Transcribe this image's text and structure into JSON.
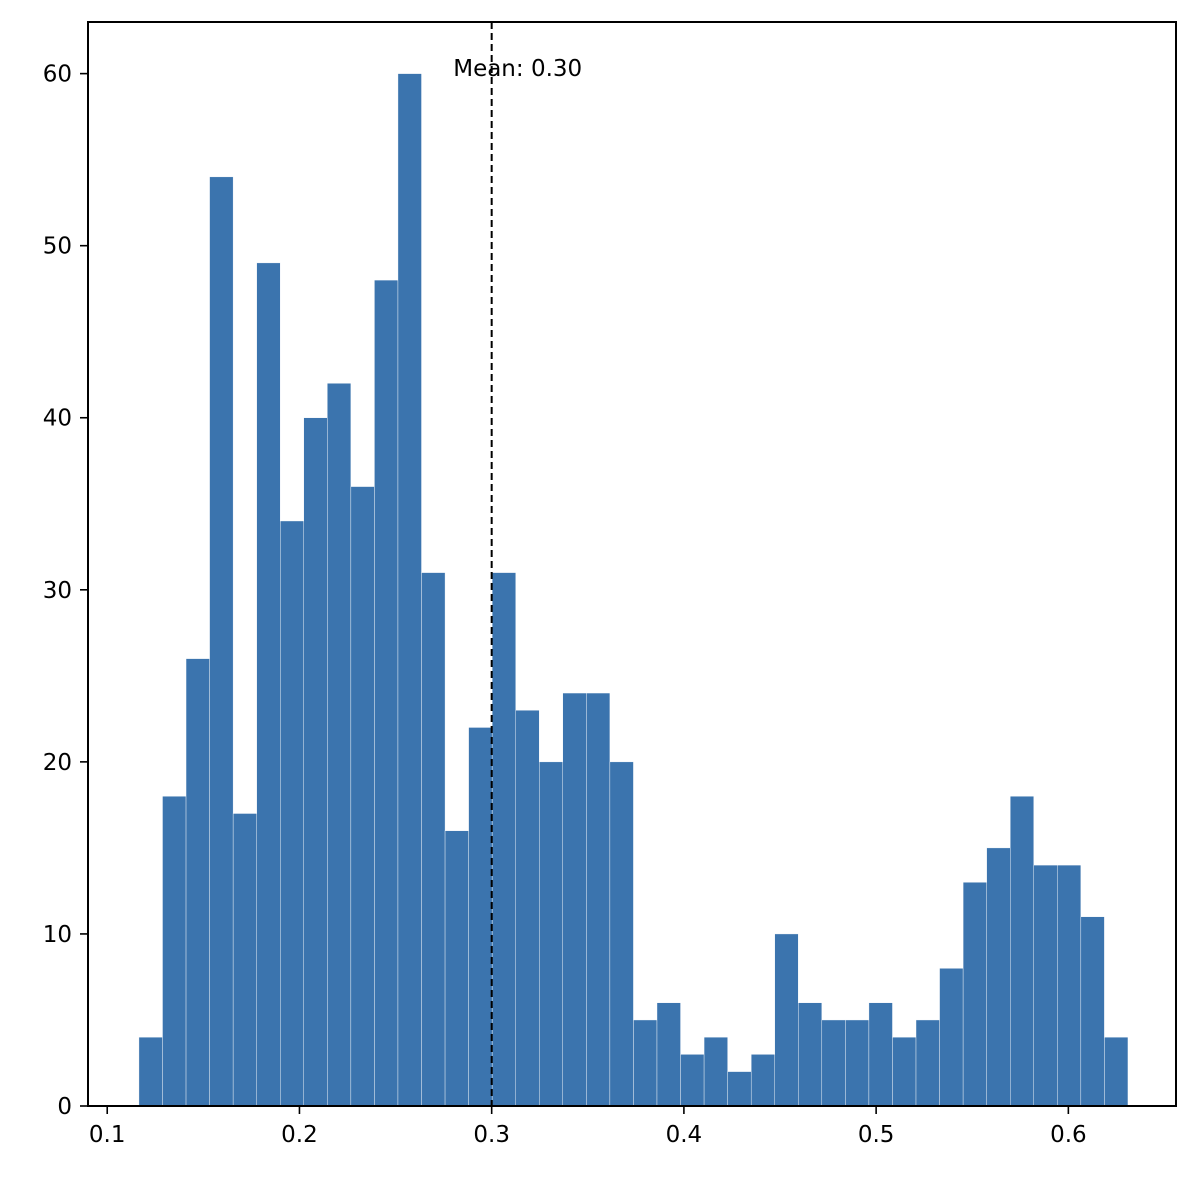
{
  "chart_data": {
    "type": "bar",
    "subtype": "histogram",
    "title": "",
    "xlabel": "",
    "ylabel": "",
    "xlim": [
      0.09,
      0.656
    ],
    "ylim": [
      0,
      63
    ],
    "x_ticks": [
      0.1,
      0.2,
      0.3,
      0.4,
      0.5,
      0.6
    ],
    "x_tick_labels": [
      "0.1",
      "0.2",
      "0.3",
      "0.4",
      "0.5",
      "0.6"
    ],
    "y_ticks": [
      0,
      10,
      20,
      30,
      40,
      50,
      60
    ],
    "y_tick_labels": [
      "0",
      "10",
      "20",
      "30",
      "40",
      "50",
      "60"
    ],
    "bin_start": 0.1165,
    "bin_width": 0.01225,
    "values": [
      4,
      18,
      26,
      54,
      17,
      49,
      34,
      40,
      42,
      36,
      48,
      60,
      31,
      16,
      22,
      31,
      23,
      20,
      24,
      24,
      20,
      5,
      6,
      3,
      4,
      2,
      3,
      10,
      6,
      5,
      5,
      6,
      4,
      5,
      8,
      13,
      15,
      18,
      14,
      14,
      11,
      4
    ],
    "bar_color": "#3b74ae",
    "grid": false,
    "mean_line": {
      "value": 0.3,
      "label": "Mean: 0.30",
      "style": "dashed",
      "color": "#000000"
    }
  }
}
